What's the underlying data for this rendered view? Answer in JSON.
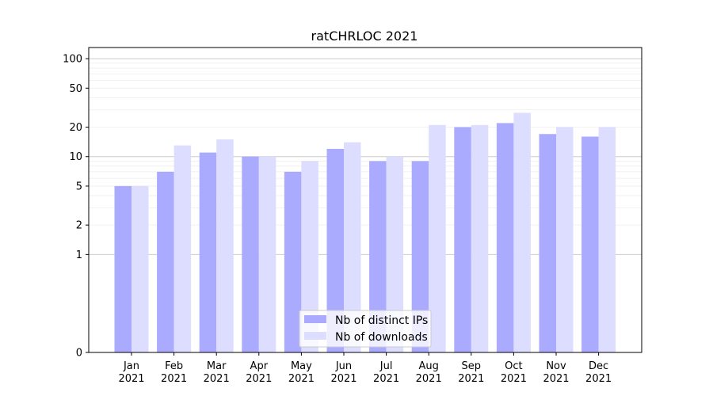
{
  "chart_data": {
    "type": "bar",
    "title": "ratCHRLOC 2021",
    "xlabel": "",
    "ylabel": "",
    "yscale": "symlog",
    "ylim": [
      0,
      130
    ],
    "yticks": [
      0,
      1,
      2,
      5,
      10,
      20,
      50,
      100
    ],
    "ytick_labels": [
      "0",
      "1",
      "2",
      "5",
      "10",
      "20",
      "50",
      "100"
    ],
    "categories": [
      "Jan 2021",
      "Feb 2021",
      "Mar 2021",
      "Apr 2021",
      "May 2021",
      "Jun 2021",
      "Jul 2021",
      "Aug 2021",
      "Sep 2021",
      "Oct 2021",
      "Nov 2021",
      "Dec 2021"
    ],
    "category_lines": [
      [
        "Jan",
        "2021"
      ],
      [
        "Feb",
        "2021"
      ],
      [
        "Mar",
        "2021"
      ],
      [
        "Apr",
        "2021"
      ],
      [
        "May",
        "2021"
      ],
      [
        "Jun",
        "2021"
      ],
      [
        "Jul",
        "2021"
      ],
      [
        "Aug",
        "2021"
      ],
      [
        "Sep",
        "2021"
      ],
      [
        "Oct",
        "2021"
      ],
      [
        "Nov",
        "2021"
      ],
      [
        "Dec",
        "2021"
      ]
    ],
    "series": [
      {
        "name": "Nb of distinct IPs",
        "color": "#aaaaff",
        "values": [
          5,
          7,
          11,
          10,
          7,
          12,
          9,
          9,
          20,
          22,
          17,
          16
        ]
      },
      {
        "name": "Nb of downloads",
        "color": "#ddddff",
        "values": [
          5,
          13,
          15,
          10,
          9,
          14,
          10,
          21,
          21,
          28,
          20,
          20
        ]
      }
    ],
    "grid": true,
    "legend": "bottom-center"
  }
}
